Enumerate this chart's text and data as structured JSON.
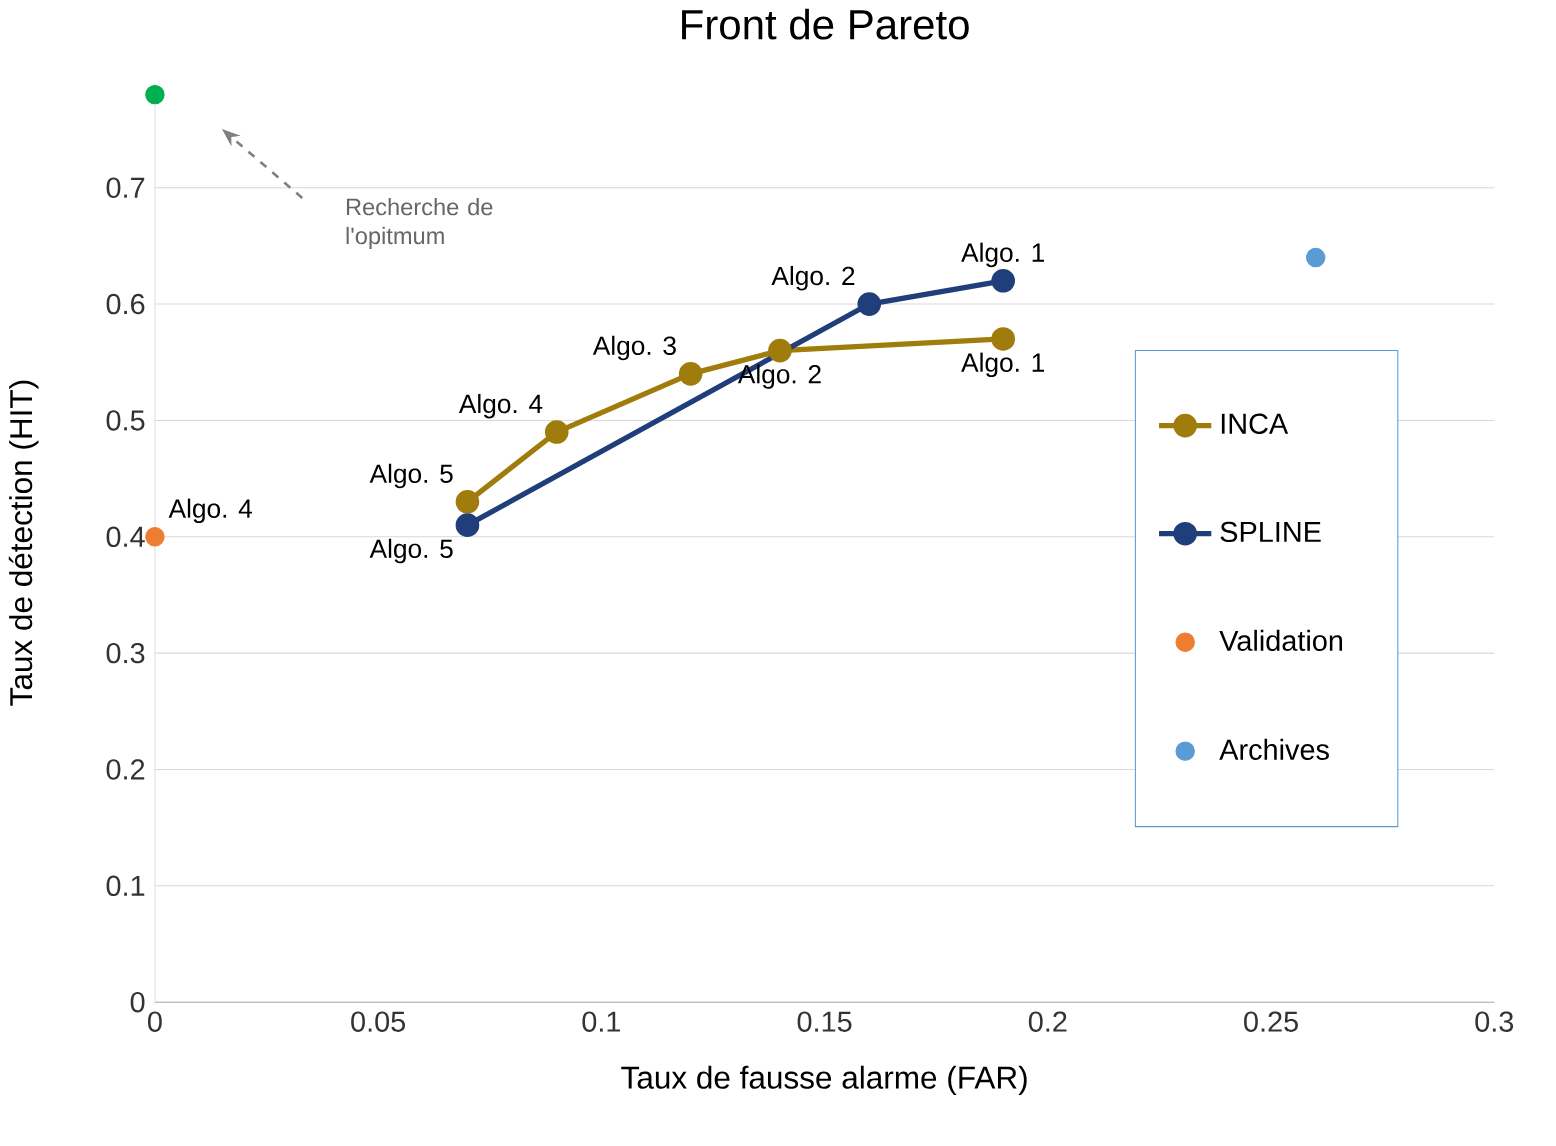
{
  "chart_data": {
    "type": "line",
    "title": "Front de Pareto",
    "xlabel": "Taux de fausse alarme (FAR)",
    "ylabel": "Taux de détection (HIT)",
    "xlim": [
      0,
      0.3
    ],
    "ylim": [
      0,
      0.79
    ],
    "xticks": [
      0,
      0.05,
      0.1,
      0.15,
      0.2,
      0.25,
      0.3
    ],
    "yticks": [
      0,
      0.1,
      0.2,
      0.3,
      0.4,
      0.5,
      0.6,
      0.7
    ],
    "grid": "y",
    "legend": "right",
    "marker": "circle",
    "series": [
      {
        "name": "INCA",
        "type": "line",
        "color": "#a07c0c",
        "x": [
          0.07,
          0.09,
          0.12,
          0.14,
          0.19
        ],
        "values": [
          0.43,
          0.49,
          0.54,
          0.56,
          0.57
        ]
      },
      {
        "name": "SPLINE",
        "type": "line",
        "color": "#203f7a",
        "x": [
          0.07,
          0.16,
          0.19
        ],
        "values": [
          0.41,
          0.6,
          0.62
        ]
      },
      {
        "name": "Validation",
        "type": "scatter",
        "color": "#ed7d31",
        "x": [
          0
        ],
        "values": [
          0.4
        ]
      },
      {
        "name": "Archives",
        "type": "scatter",
        "color": "#5b9bd5",
        "x": [
          0.26
        ],
        "values": [
          0.64
        ]
      },
      {
        "type": "scatter",
        "color": "#00b050",
        "x": [
          0
        ],
        "values": [
          0.78
        ]
      }
    ],
    "annotations": [
      {
        "text": "Algo. 5",
        "x": 0.07,
        "y": 0.43
      },
      {
        "text": "Algo. 4",
        "x": 0.09,
        "y": 0.49
      },
      {
        "text": "Algo. 3",
        "x": 0.12,
        "y": 0.54
      },
      {
        "text": "Algo. 2",
        "x": 0.14,
        "y": 0.56
      },
      {
        "text": "Algo. 1",
        "x": 0.19,
        "y": 0.57
      },
      {
        "text": "Algo. 5",
        "x": 0.07,
        "y": 0.41
      },
      {
        "text": "Algo. 2",
        "x": 0.16,
        "y": 0.6
      },
      {
        "text": "Algo. 1",
        "x": 0.19,
        "y": 0.62
      },
      {
        "text": "Algo. 4",
        "x": 0,
        "y": 0.4
      },
      "Recherche de l'opitmum"
    ]
  }
}
